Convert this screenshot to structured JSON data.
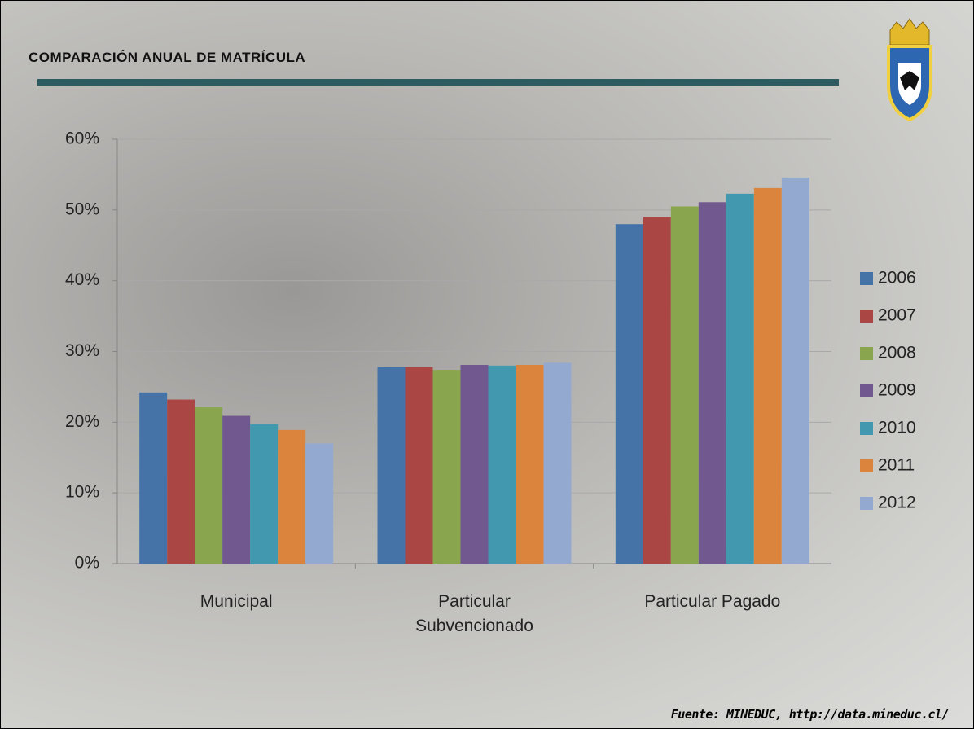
{
  "chart_data": {
    "type": "bar",
    "title": "COMPARACIÓN ANUAL DE MATRÍCULA",
    "source": "Fuente: MINEDUC, http://data.mineduc.cl/",
    "categories": [
      "Municipal",
      "Particular Subvencionado",
      "Particular Pagado"
    ],
    "series": [
      {
        "name": "2006",
        "color": "#4573a7",
        "values": [
          24.2,
          27.8,
          48.0
        ]
      },
      {
        "name": "2007",
        "color": "#aa4643",
        "values": [
          23.2,
          27.8,
          49.0
        ]
      },
      {
        "name": "2008",
        "color": "#89a54e",
        "values": [
          22.1,
          27.4,
          50.5
        ]
      },
      {
        "name": "2009",
        "color": "#71588f",
        "values": [
          20.9,
          28.1,
          51.1
        ]
      },
      {
        "name": "2010",
        "color": "#4198af",
        "values": [
          19.7,
          28.0,
          52.3
        ]
      },
      {
        "name": "2011",
        "color": "#db843d",
        "values": [
          18.9,
          28.1,
          53.1
        ]
      },
      {
        "name": "2012",
        "color": "#93a9cf",
        "values": [
          17.0,
          28.4,
          54.6
        ]
      }
    ],
    "ylim": [
      0,
      60
    ],
    "yticks": [
      {
        "value": 0,
        "label": "0%"
      },
      {
        "value": 10,
        "label": "10%"
      },
      {
        "value": 20,
        "label": "20%"
      },
      {
        "value": 30,
        "label": "30%"
      },
      {
        "value": 40,
        "label": "40%"
      },
      {
        "value": 50,
        "label": "50%"
      },
      {
        "value": 60,
        "label": "60%"
      }
    ],
    "grid": true,
    "legend": "right"
  }
}
